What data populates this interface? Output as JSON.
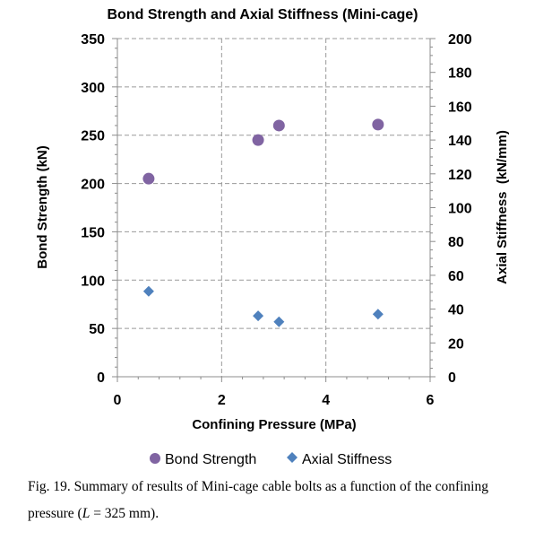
{
  "chart_data": {
    "type": "scatter",
    "title": "Bond Strength and Axial Stiffness (Mini-cage)",
    "xlabel": "Confining Pressure (MPa)",
    "ylabel_left": "Bond Strength (kN)",
    "ylabel_right": "Axial Stiffness  (kN/mm)",
    "xlim": [
      0,
      6
    ],
    "ylim_left": [
      0,
      350
    ],
    "ylim_right": [
      0,
      200
    ],
    "x_ticks": [
      0,
      2,
      4,
      6
    ],
    "y_ticks_left": [
      0,
      50,
      100,
      150,
      200,
      250,
      300,
      350
    ],
    "y_ticks_right": [
      0,
      20,
      40,
      60,
      80,
      100,
      120,
      140,
      160,
      180,
      200
    ],
    "grid": true,
    "legend_position": "bottom",
    "series": [
      {
        "name": "Bond Strength",
        "axis": "left",
        "marker": "circle",
        "color": "#8064A2",
        "x": [
          0.6,
          2.7,
          3.1,
          5.0
        ],
        "values": [
          205,
          245,
          260,
          261
        ]
      },
      {
        "name": "Axial Stiffness",
        "axis": "right",
        "marker": "diamond",
        "color": "#4F81BD",
        "x": [
          0.6,
          2.7,
          3.1,
          5.0
        ],
        "values": [
          50.5,
          36,
          32.5,
          37
        ]
      }
    ]
  },
  "caption": {
    "line1": "Fig. 19. Summary of results of Mini-cage cable bolts as a function of the confining",
    "line2_prefix": "pressure (",
    "line2_var": "L",
    "line2_suffix": " = 325 mm)."
  }
}
